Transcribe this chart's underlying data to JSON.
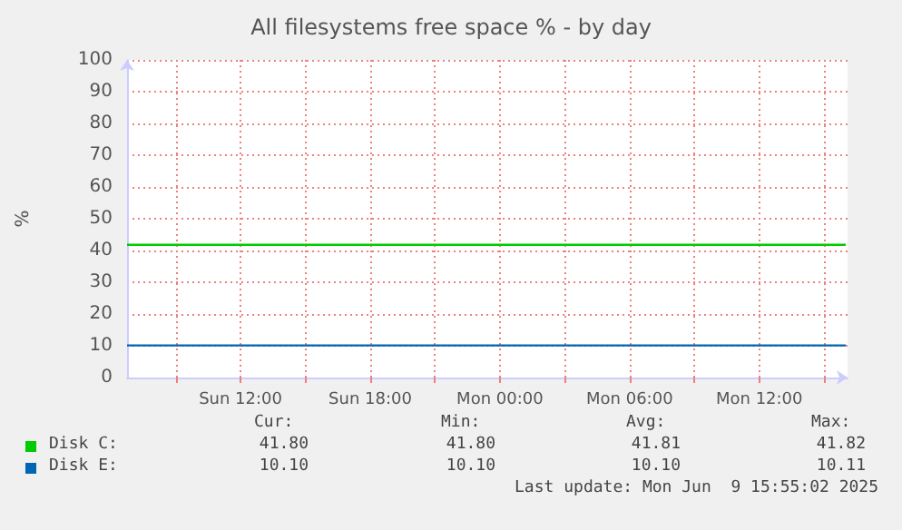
{
  "chart_data": {
    "type": "line",
    "title": "All filesystems free space % - by day",
    "ylabel": "%",
    "x": [
      "2025-06-08T06:45",
      "2025-06-09T16:00"
    ],
    "series": [
      {
        "name": "Disk C:",
        "color": "#00cc00",
        "values": [
          41.8,
          41.8
        ]
      },
      {
        "name": "Disk E:",
        "color": "#0066b3",
        "values": [
          10.1,
          10.1
        ]
      }
    ],
    "xlim": [
      "2025-06-08T06:45",
      "2025-06-09T16:05"
    ],
    "xticks": [
      {
        "value": "2025-06-08T09:00",
        "label": null
      },
      {
        "value": "2025-06-08T12:00",
        "label": "Sun 12:00"
      },
      {
        "value": "2025-06-08T15:00",
        "label": null
      },
      {
        "value": "2025-06-08T18:00",
        "label": "Sun 18:00"
      },
      {
        "value": "2025-06-08T21:00",
        "label": null
      },
      {
        "value": "2025-06-09T00:00",
        "label": "Mon 00:00"
      },
      {
        "value": "2025-06-09T03:00",
        "label": null
      },
      {
        "value": "2025-06-09T06:00",
        "label": "Mon 06:00"
      },
      {
        "value": "2025-06-09T09:00",
        "label": null
      },
      {
        "value": "2025-06-09T12:00",
        "label": "Mon 12:00"
      },
      {
        "value": "2025-06-09T15:00",
        "label": null
      }
    ],
    "ylim": [
      0,
      100
    ],
    "yticks": [
      0,
      10,
      20,
      30,
      40,
      50,
      60,
      70,
      80,
      90,
      100
    ],
    "grid": true,
    "legend": "bottom",
    "marker": "none",
    "line_style": "solid",
    "annotations": [
      "Cur:",
      "Min:",
      "Avg:",
      "Max:",
      "41.80",
      "41.80",
      "41.81",
      "41.82",
      "10.10",
      "10.10",
      "10.10",
      "10.11",
      "Last update: Mon Jun  9 15:55:02 2025"
    ]
  }
}
